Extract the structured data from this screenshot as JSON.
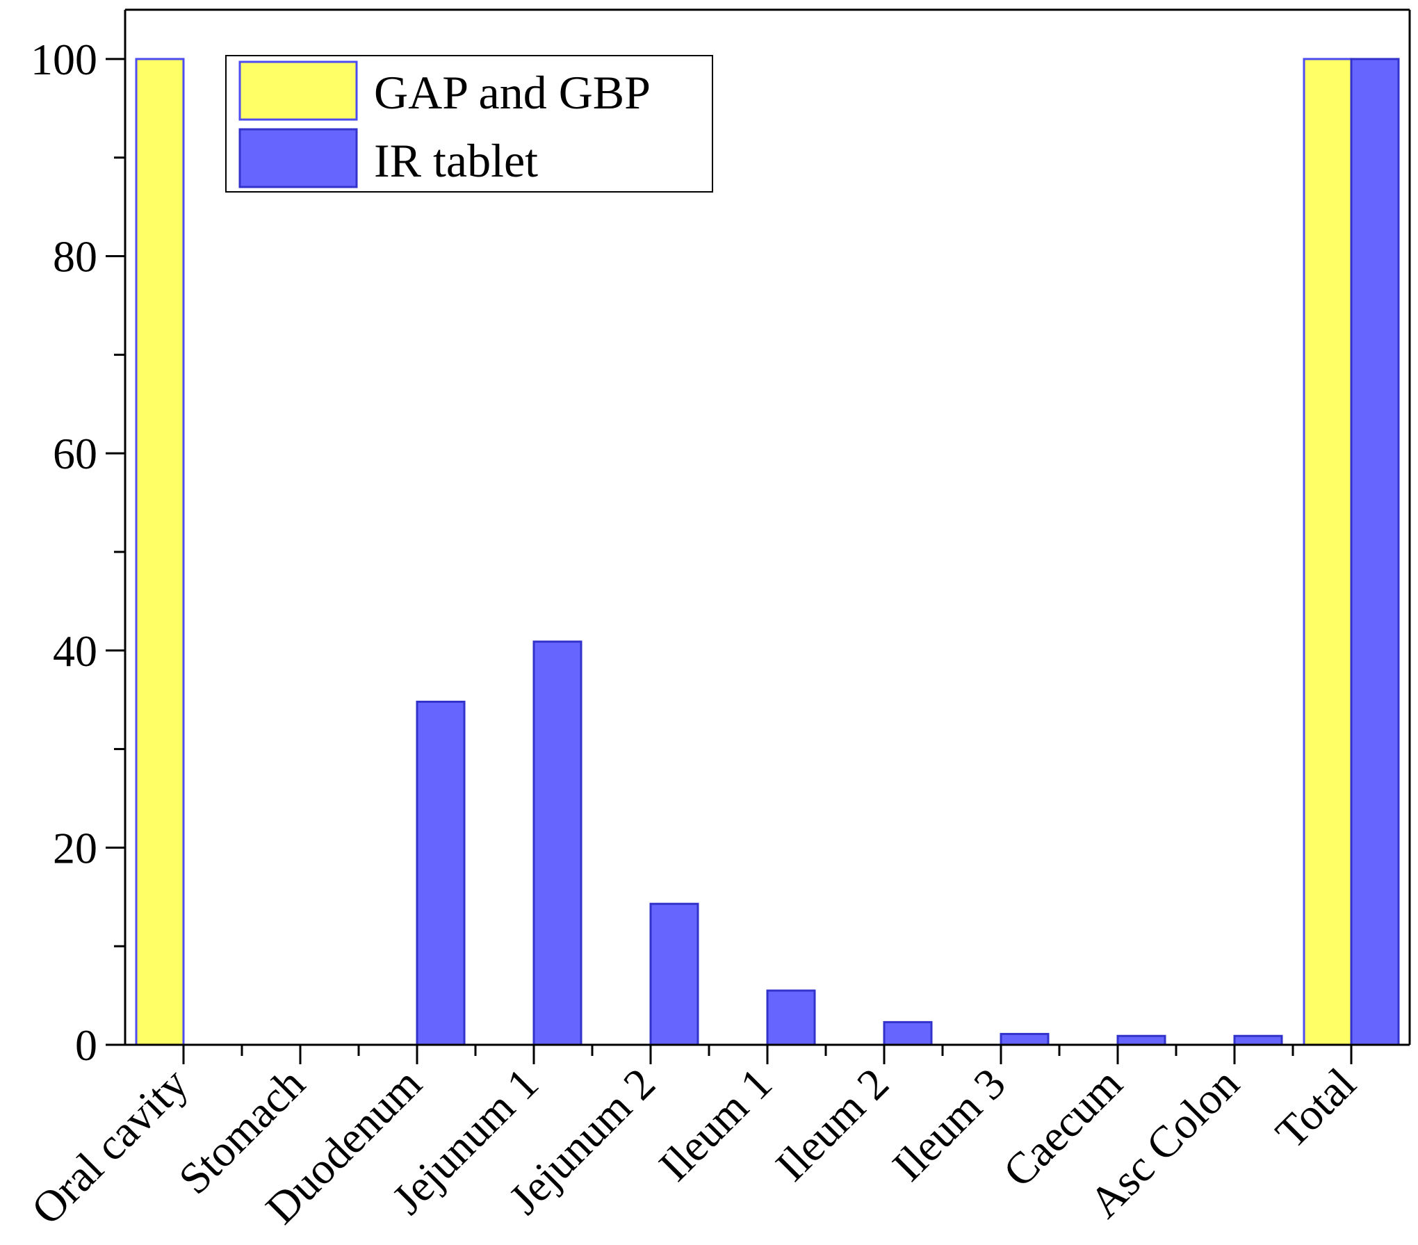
{
  "chart_data": {
    "type": "bar",
    "title": "",
    "xlabel": "",
    "ylabel": "",
    "ylim": [
      0,
      105
    ],
    "yticks": [
      0,
      20,
      40,
      60,
      80,
      100
    ],
    "yticks_minor": [
      10,
      30,
      50,
      70,
      90
    ],
    "ytick_labels": [
      "0",
      "20",
      "40",
      "60",
      "80",
      "100"
    ],
    "categories": [
      "Oral cavity",
      "Stomach",
      "Duodenum",
      "Jejunum 1",
      "Jejunum 2",
      "Ileum 1",
      "Ileum 2",
      "Ileum 3",
      "Caecum",
      "Asc Colon",
      "Total"
    ],
    "series": [
      {
        "name": "GAP and GBP",
        "color": "#ffff66",
        "edge": "#4c4cf0",
        "values": [
          100,
          0,
          0,
          0,
          0,
          0,
          0,
          0,
          0,
          0,
          100
        ]
      },
      {
        "name": "IR tablet",
        "color": "#6666ff",
        "edge": "#3333cc",
        "values": [
          0,
          0,
          34.8,
          40.9,
          14.3,
          5.5,
          2.3,
          1.1,
          0.9,
          0.9,
          100
        ]
      }
    ],
    "legend": {
      "position": "top-left"
    },
    "grid": false
  }
}
